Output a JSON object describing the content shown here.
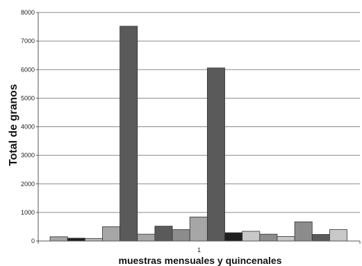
{
  "chart_data": {
    "type": "bar",
    "title": "",
    "xlabel": "muestras mensuales y quincenales",
    "ylabel": "Total de granos",
    "categories": [
      "1"
    ],
    "ylim": [
      0,
      8000
    ],
    "yticks": [
      0,
      1000,
      2000,
      3000,
      4000,
      5000,
      6000,
      7000,
      8000
    ],
    "grid": true,
    "legend": "none",
    "series": [
      {
        "values": [
          150
        ],
        "color": "#a6a6a6"
      },
      {
        "values": [
          100
        ],
        "color": "#1f1f1f"
      },
      {
        "values": [
          90
        ],
        "color": "#b8b8b8"
      },
      {
        "values": [
          500
        ],
        "color": "#a6a6a6"
      },
      {
        "values": [
          7520
        ],
        "color": "#5a5a5a"
      },
      {
        "values": [
          240
        ],
        "color": "#a6a6a6"
      },
      {
        "values": [
          520
        ],
        "color": "#5a5a5a"
      },
      {
        "values": [
          400
        ],
        "color": "#8c8c8c"
      },
      {
        "values": [
          840
        ],
        "color": "#a6a6a6"
      },
      {
        "values": [
          6060
        ],
        "color": "#5a5a5a"
      },
      {
        "values": [
          290
        ],
        "color": "#1f1f1f"
      },
      {
        "values": [
          340
        ],
        "color": "#c8c8c8"
      },
      {
        "values": [
          240
        ],
        "color": "#8c8c8c"
      },
      {
        "values": [
          160
        ],
        "color": "#c8c8c8"
      },
      {
        "values": [
          670
        ],
        "color": "#8c8c8c"
      },
      {
        "values": [
          230
        ],
        "color": "#5a5a5a"
      },
      {
        "values": [
          400
        ],
        "color": "#c8c8c8"
      }
    ]
  }
}
